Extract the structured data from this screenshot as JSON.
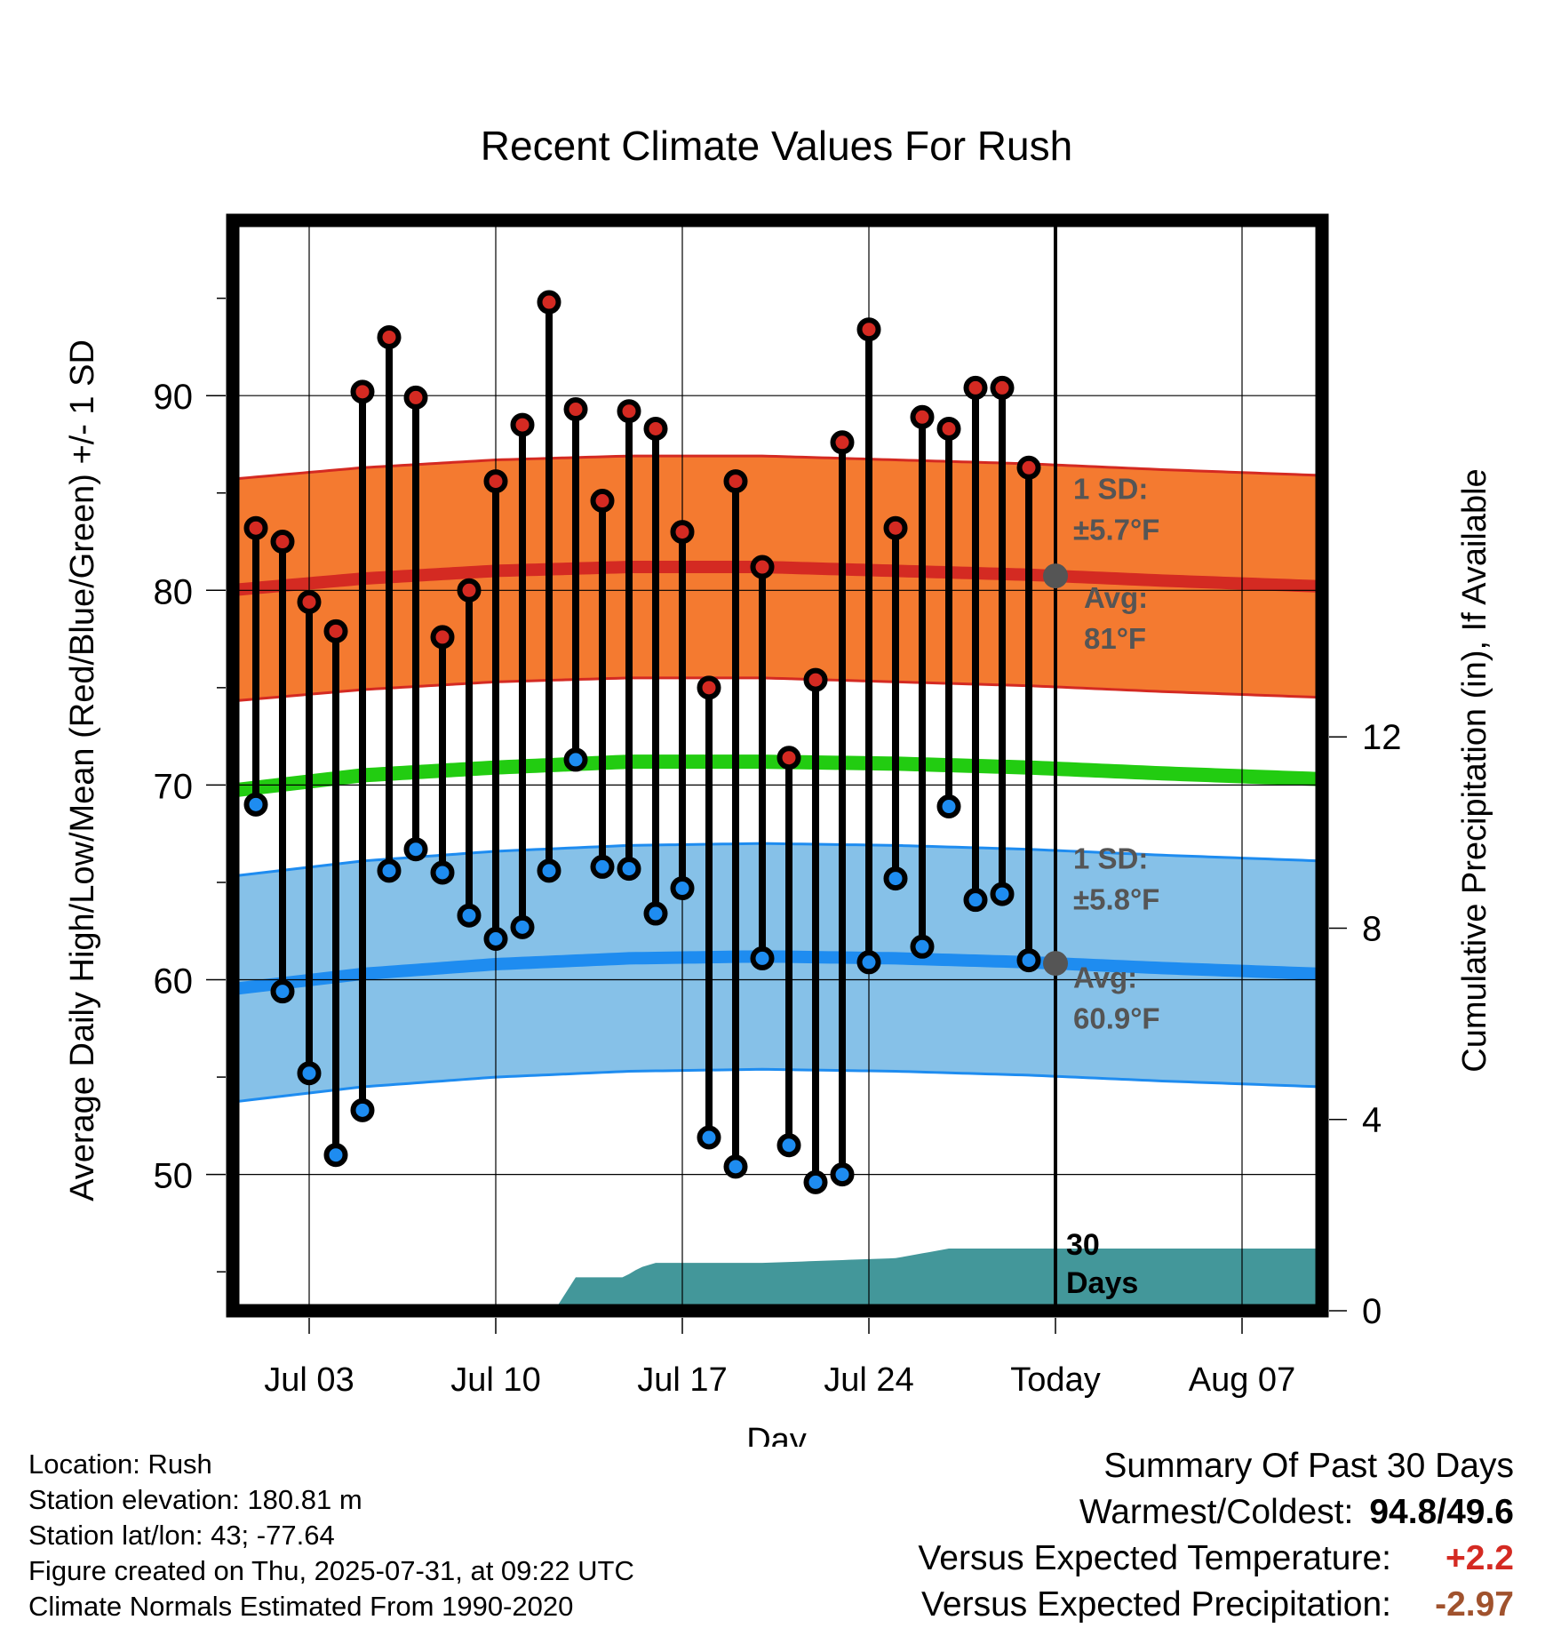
{
  "chart_data": {
    "type": "line",
    "title": "Recent Climate Values For Rush",
    "xlabel": "Day",
    "ylabel": "Average Daily High/Low/Mean (Red/Blue/Green) +/- 1 SD",
    "y2label": "Cumulative Precipitation (in), If Available",
    "ylim": [
      43,
      99
    ],
    "y2lim": [
      0,
      22.8
    ],
    "xlim_days": [
      0,
      41
    ],
    "x_ticks": [
      {
        "day": 3,
        "label": "Jul 03"
      },
      {
        "day": 10,
        "label": "Jul 10"
      },
      {
        "day": 17,
        "label": "Jul 17"
      },
      {
        "day": 24,
        "label": "Jul 24"
      },
      {
        "day": 31,
        "label": "Today"
      },
      {
        "day": 38,
        "label": "Aug 07"
      }
    ],
    "y_ticks": [
      50,
      60,
      70,
      80,
      90
    ],
    "y2_ticks": [
      0,
      4,
      8,
      12
    ],
    "days": [
      1,
      2,
      3,
      4,
      5,
      6,
      7,
      8,
      9,
      10,
      11,
      12,
      13,
      14,
      15,
      16,
      17,
      18,
      19,
      20,
      21,
      22,
      23,
      24,
      25,
      26,
      27,
      28,
      29,
      30
    ],
    "highs": [
      83.2,
      82.5,
      79.4,
      77.9,
      90.2,
      93.0,
      89.9,
      77.6,
      80.0,
      85.6,
      88.5,
      94.8,
      89.3,
      84.6,
      89.2,
      88.3,
      83.0,
      75.0,
      85.6,
      81.2,
      71.4,
      75.4,
      87.6,
      93.4,
      83.2,
      88.9,
      88.3,
      90.4,
      90.4,
      86.3
    ],
    "lows": [
      69.0,
      59.4,
      55.2,
      51.0,
      53.3,
      65.6,
      66.7,
      65.5,
      63.3,
      62.1,
      62.7,
      65.6,
      71.3,
      65.8,
      65.7,
      63.4,
      64.7,
      51.9,
      50.4,
      61.1,
      51.5,
      49.6,
      50.0,
      60.9,
      65.2,
      61.7,
      68.9,
      64.1,
      64.4,
      61.0
    ],
    "normal_high": {
      "day": [
        0,
        5,
        10,
        15,
        20,
        25,
        30,
        35,
        41
      ],
      "values": [
        80.0,
        80.6,
        81.0,
        81.2,
        81.2,
        81.0,
        80.8,
        80.5,
        80.2
      ]
    },
    "normal_low": {
      "day": [
        0,
        5,
        10,
        15,
        20,
        25,
        30,
        35,
        41
      ],
      "values": [
        59.5,
        60.3,
        60.8,
        61.1,
        61.2,
        61.1,
        60.9,
        60.6,
        60.3
      ]
    },
    "normal_mean": {
      "day": [
        0,
        5,
        10,
        15,
        20,
        25,
        30,
        35,
        41
      ],
      "values": [
        69.7,
        70.5,
        70.9,
        71.2,
        71.2,
        71.1,
        70.9,
        70.6,
        70.3
      ]
    },
    "sd_high": 5.7,
    "sd_low": 5.8,
    "precip": {
      "day": [
        0,
        12.2,
        13.0,
        14.8,
        15.4,
        16.0,
        17.0,
        20.0,
        25.0,
        26.0,
        27.0,
        41
      ],
      "values": [
        0,
        0,
        0.7,
        0.7,
        0.9,
        1.0,
        1.0,
        1.0,
        1.1,
        1.2,
        1.3,
        1.3
      ]
    },
    "today_day": 31,
    "annotations": {
      "high_sd_line1": "1 SD:",
      "high_sd_line2": "±5.7°F",
      "high_avg_line1": "Avg:",
      "high_avg_line2": "81°F",
      "low_sd_line1": "1 SD:",
      "low_sd_line2": "±5.8°F",
      "low_avg_line1": "Avg:",
      "low_avg_line2": "60.9°F",
      "days_line1": "30",
      "days_line2": "Days"
    },
    "colors": {
      "high_band": "#f47a30",
      "high_line": "#d42a22",
      "low_band": "#86c1e8",
      "low_line": "#1e8cf0",
      "mean_line": "#22cc11",
      "precip": "#43979a",
      "high_dot": "#d42a22",
      "low_dot": "#1e8cf0",
      "annotation": "#555555"
    }
  },
  "info": {
    "location": "Location: Rush",
    "elevation": "Station elevation: 180.81 m",
    "latlon": "Station lat/lon: 43; -77.64",
    "created": "Figure created on Thu, 2025-07-31, at 09:22 UTC",
    "normals": "Climate Normals Estimated From 1990-2020"
  },
  "summary": {
    "title": "Summary Of Past 30 Days",
    "warmest_label": "Warmest/Coldest:",
    "warmest_value": "94.8/49.6",
    "temp_label": "Versus Expected Temperature:",
    "temp_value": "+2.2",
    "temp_color": "#d42a22",
    "precip_label": "Versus Expected Precipitation:",
    "precip_value": "-2.97",
    "precip_color": "#a0522d"
  }
}
